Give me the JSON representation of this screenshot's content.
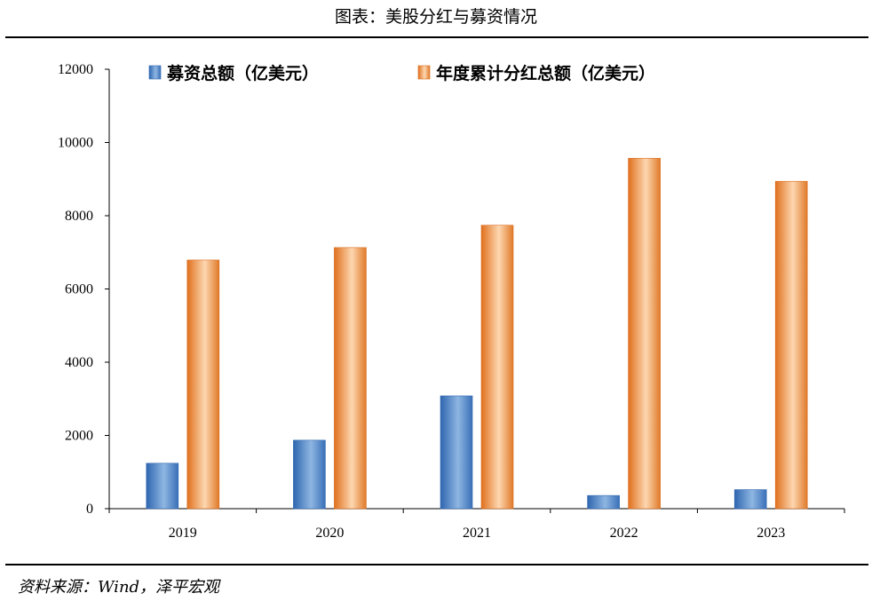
{
  "header": {
    "title": "图表：美股分红与募资情况"
  },
  "footer": {
    "source": "资料来源：Wind，泽平宏观"
  },
  "chart_data": {
    "type": "bar",
    "title": "",
    "xlabel": "",
    "ylabel": "",
    "categories": [
      "2019",
      "2020",
      "2021",
      "2022",
      "2023"
    ],
    "series": [
      {
        "name": "募资总额（亿美元）",
        "values": [
          1240,
          1870,
          3080,
          360,
          520
        ],
        "color": "#4A7EC0"
      },
      {
        "name": "年度累计分红总额（亿美元）",
        "values": [
          6790,
          7130,
          7740,
          9570,
          8940
        ],
        "color": "#E88A3C"
      }
    ],
    "ylim": [
      0,
      12000
    ],
    "yticks": [
      "0",
      "2000",
      "4000",
      "6000",
      "8000",
      "10000",
      "12000"
    ],
    "grid": false,
    "legend_position": "top"
  }
}
